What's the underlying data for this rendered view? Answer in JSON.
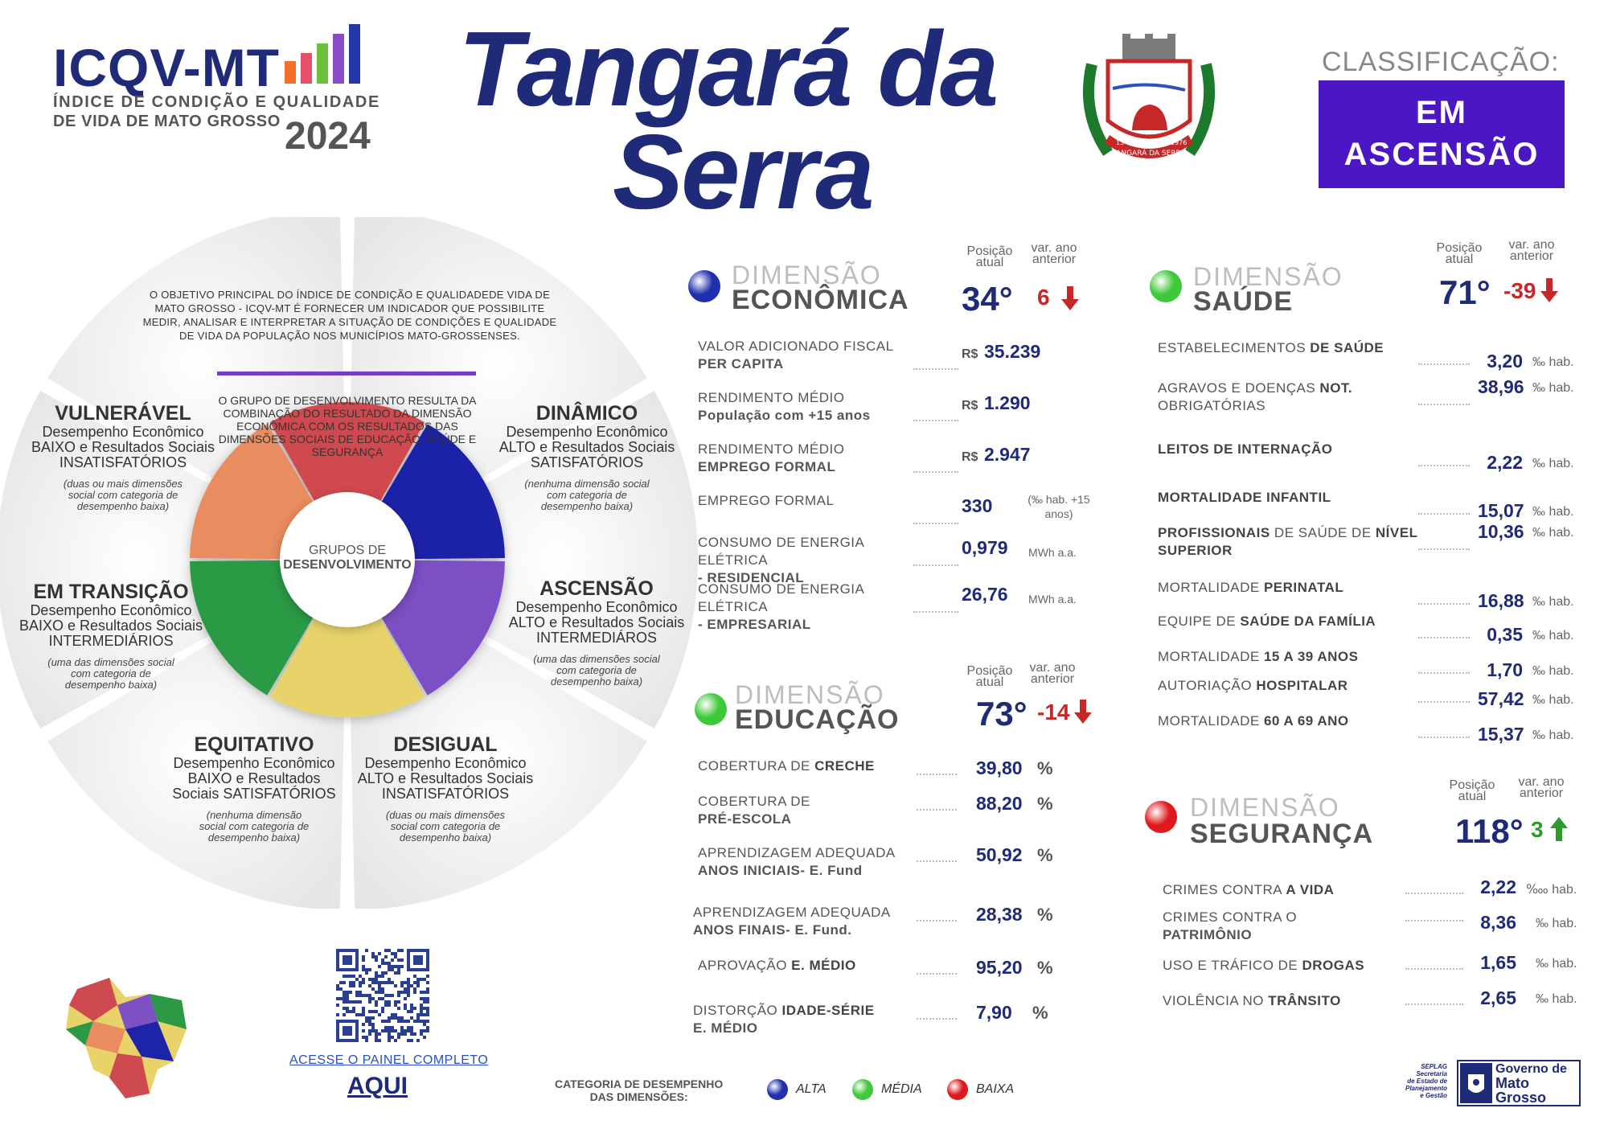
{
  "header": {
    "brand": "ICQV-MT",
    "brand_line1": "ÍNDICE DE CONDIÇÃO E QUALIDADE",
    "brand_line2": "DE VIDA DE MATO GROSSO",
    "year": "2024",
    "city_line1": "Tangará da",
    "city_line2": "Serra",
    "classification_label": "CLASSIFICAÇÃO:",
    "classification_line1": "EM",
    "classification_line2": "ASCENSÃO",
    "crest_text": "TANGARÁ DA SERRA",
    "crest_date_left": "13-05",
    "crest_date_right": "1976"
  },
  "wheel": {
    "intro": "O OBJETIVO PRINCIPAL DO ÍNDICE DE CONDIÇÃO E QUALIDADEDE VIDA DE MATO GROSSO - ICQV-MT É FORNECER UM INDICADOR QUE POSSIBILITE MEDIR, ANALISAR E INTERPRETAR A SITUAÇÃO DE CONDIÇÕES E QUALIDADE DE VIDA DA POPULAÇÃO NOS MUNICÍPIOS MATO-GROSSENSES.",
    "group_text": "O GRUPO DE DESENVOLVIMENTO RESULTA DA COMBINAÇÃO DO RESULTADO DA DIMENSÃO ECONÔMICA COM OS RESULTADOS DAS DIMENSÕES SOCIAIS DE EDUCAÇÃO, SAÚDE E SEGURANÇA",
    "center_line1": "GRUPOS DE",
    "center_line2": "DESENVOLVIMENTO",
    "groups": [
      {
        "title": "VULNERÁVEL",
        "desc": "Desempenho Econômico BAIXO e Resultados Sociais INSATISFATÓRIOS",
        "note": "(duas ou mais dimensões social com categoria de desempenho baixa)",
        "color": "#cf4a50"
      },
      {
        "title": "DINÂMICO",
        "desc": "Desempenho Econômico ALTO e Resultados Sociais SATISFATÓRIOS",
        "note": "(nenhuma dimensão social com categoria de desempenho baixa)",
        "color": "#1d24a8"
      },
      {
        "title": "EM TRANSIÇÃO",
        "desc": "Desempenho Econômico BAIXO e Resultados Sociais INTERMEDIÁRIOS",
        "note": "(uma das dimensões social com categoria de desempenho baixa)",
        "color": "#e98c5f"
      },
      {
        "title": "ASCENSÃO",
        "desc": "Desempenho Econômico ALTO e Resultados Sociais INTERMEDIÁROS",
        "note": "(uma das dimensões social com categoria de desempenho baixa)",
        "color": "#7d50c4"
      },
      {
        "title": "EQUITATIVO",
        "desc": "Desempenho Econômico BAIXO e Resultados Sociais SATISFATÓRIOS",
        "note": "(nenhuma dimensão social com categoria de desempenho baixa)",
        "color": "#2c9a45"
      },
      {
        "title": "DESIGUAL",
        "desc": "Desempenho Econômico ALTO e Resultados Sociais INSATISFATÓRIOS",
        "note": "(duas ou mais dimensões social com categoria de desempenho baixa)",
        "color": "#e8d36a"
      }
    ]
  },
  "common": {
    "pos_label_1": "Posição",
    "pos_label_2": "atual",
    "var_label_1": "var. ano",
    "var_label_2": "anterior"
  },
  "economica": {
    "word1": "DIMENSÃO",
    "word2": "ECONÔMICA",
    "dot_color": "#1f2fb0",
    "position": "34°",
    "variation": "6",
    "variation_dir": "down",
    "rows": [
      {
        "l1": "VALOR ADICIONADO FISCAL",
        "l2": "PER CAPITA",
        "prefix": "R$",
        "value": "35.239",
        "unit": ""
      },
      {
        "l1": "RENDIMENTO MÉDIO",
        "l2": "População com +15 anos",
        "prefix": "R$",
        "value": "1.290",
        "unit": ""
      },
      {
        "l1": "RENDIMENTO MÉDIO",
        "l2": "EMPREGO FORMAL",
        "prefix": "R$",
        "value": "2.947",
        "unit": ""
      },
      {
        "l1": "EMPREGO FORMAL",
        "l2": "",
        "prefix": "",
        "value": "330",
        "unit": "(‰ hab. +15 anos)"
      },
      {
        "l1": "CONSUMO DE ENERGIA ELÉTRICA",
        "l2": "- RESIDENCIAL",
        "prefix": "",
        "value": "0,979",
        "unit": "MWh a.a."
      },
      {
        "l1": "CONSUMO DE ENERGIA ELÉTRICA",
        "l2": "- EMPRESARIAL",
        "prefix": "",
        "value": "26,76",
        "unit": "MWh a.a."
      }
    ]
  },
  "educacao": {
    "word1": "DIMENSÃO",
    "word2": "EDUCAÇÃO",
    "dot_color": "#3fc93a",
    "position": "73°",
    "variation": "-14",
    "variation_dir": "down",
    "rows": [
      {
        "l1": "COBERTURA DE",
        "b1": "CRECHE",
        "l2": "",
        "value": "39,80",
        "unit": "%"
      },
      {
        "l1": "COBERTURA DE",
        "b1": "",
        "l2": "PRÉ-ESCOLA",
        "value": "88,20",
        "unit": "%"
      },
      {
        "l1": "APRENDIZAGEM ADEQUADA",
        "b1": "",
        "l2": "ANOS INICIAIS- E. Fund",
        "value": "50,92",
        "unit": "%"
      },
      {
        "l1": "APRENDIZAGEM ADEQUADA",
        "b1": "",
        "l2": "ANOS FINAIS- E. Fund.",
        "value": "28,38",
        "unit": "%"
      },
      {
        "l1": "APROVAÇÃO",
        "b1": "E. MÉDIO",
        "l2": "",
        "value": "95,20",
        "unit": "%"
      },
      {
        "l1": "DISTORÇÃO",
        "b1": "IDADE-SÉRIE",
        "l2": "E. MÉDIO",
        "value": "7,90",
        "unit": "%"
      }
    ]
  },
  "saude": {
    "word1": "DIMENSÃO",
    "word2": "SAÚDE",
    "dot_color": "#3fc93a",
    "position": "71°",
    "variation": "-39",
    "variation_dir": "down",
    "rows": [
      {
        "a": "ESTABELECIMENTOS",
        "b": "DE SAÚDE",
        "c": "",
        "d": "",
        "value": "3,20",
        "unit": "‰ hab."
      },
      {
        "a": "AGRAVOS E DOENÇAS",
        "b": "NOT.",
        "c": "OBRIGATÓRIAS",
        "d": "",
        "value": "38,96",
        "unit": "‰ hab."
      },
      {
        "a": "",
        "b": "LEITOS DE INTERNAÇÃO",
        "c": "",
        "d": "",
        "value": "2,22",
        "unit": "‰ hab."
      },
      {
        "a": "",
        "b": "MORTALIDADE INFANTIL",
        "c": "",
        "d": "",
        "value": "15,07",
        "unit": "‰ hab."
      },
      {
        "a": "",
        "b": "PROFISSIONAIS",
        "c": "DE SAÚDE DE",
        "d": "NÍVEL SUPERIOR",
        "value": "10,36",
        "unit": "‰ hab."
      },
      {
        "a": "MORTALIDADE",
        "b": "PERINATAL",
        "c": "",
        "d": "",
        "value": "16,88",
        "unit": "‰ hab."
      },
      {
        "a": "EQUIPE DE",
        "b": "SAÚDE DA FAMÍLIA",
        "c": "",
        "d": "",
        "value": "0,35",
        "unit": "‰ hab."
      },
      {
        "a": "MORTALIDADE",
        "b": "15 A 39 ANOS",
        "c": "",
        "d": "",
        "value": "1,70",
        "unit": "‰ hab."
      },
      {
        "a": "AUTORIAÇÃO",
        "b": "HOSPITALAR",
        "c": "",
        "d": "",
        "value": "57,42",
        "unit": "‰ hab."
      },
      {
        "a": "MORTALIDADE",
        "b": "60 A 69 ANO",
        "c": "",
        "d": "",
        "value": "15,37",
        "unit": "‰ hab."
      }
    ]
  },
  "seguranca": {
    "word1": "DIMENSÃO",
    "word2": "SEGURANÇA",
    "dot_color": "#e0191e",
    "position": "118°",
    "variation": "3",
    "variation_dir": "up",
    "rows": [
      {
        "a": "CRIMES CONTRA",
        "b": "A VIDA",
        "c": "",
        "value": "2,22",
        "unit": "‱ hab."
      },
      {
        "a": "CRIMES CONTRA O",
        "b": "",
        "c": "PATRIMÔNIO",
        "value": "8,36",
        "unit": "‰ hab."
      },
      {
        "a": "USO E TRÁFICO DE",
        "b": "DROGAS",
        "c": "",
        "value": "1,65",
        "unit": "‰ hab."
      },
      {
        "a": "VIOLÊNCIA NO",
        "b": "TRÂNSITO",
        "c": "",
        "value": "2,65",
        "unit": "‰ hab."
      }
    ]
  },
  "footer": {
    "qr_link": "ACESSE O PAINEL COMPLETO",
    "qr_aqui": "AQUI",
    "legend_title_1": "CATEGORIA DE DESEMPENHO",
    "legend_title_2": "DAS DIMENSÕES:",
    "legend": [
      {
        "label": "ALTA",
        "color": "#1f2fb0"
      },
      {
        "label": "MÉDIA",
        "color": "#3fc93a"
      },
      {
        "label": "BAIXA",
        "color": "#e0191e"
      }
    ],
    "gov_1": "Governo de",
    "gov_2": "Mato",
    "gov_3": "Grosso",
    "seplag_1": "SEPLAG",
    "seplag_2": "Secretaria",
    "seplag_3": "de Estado de",
    "seplag_4": "Planejamento",
    "seplag_5": "e Gestão"
  }
}
